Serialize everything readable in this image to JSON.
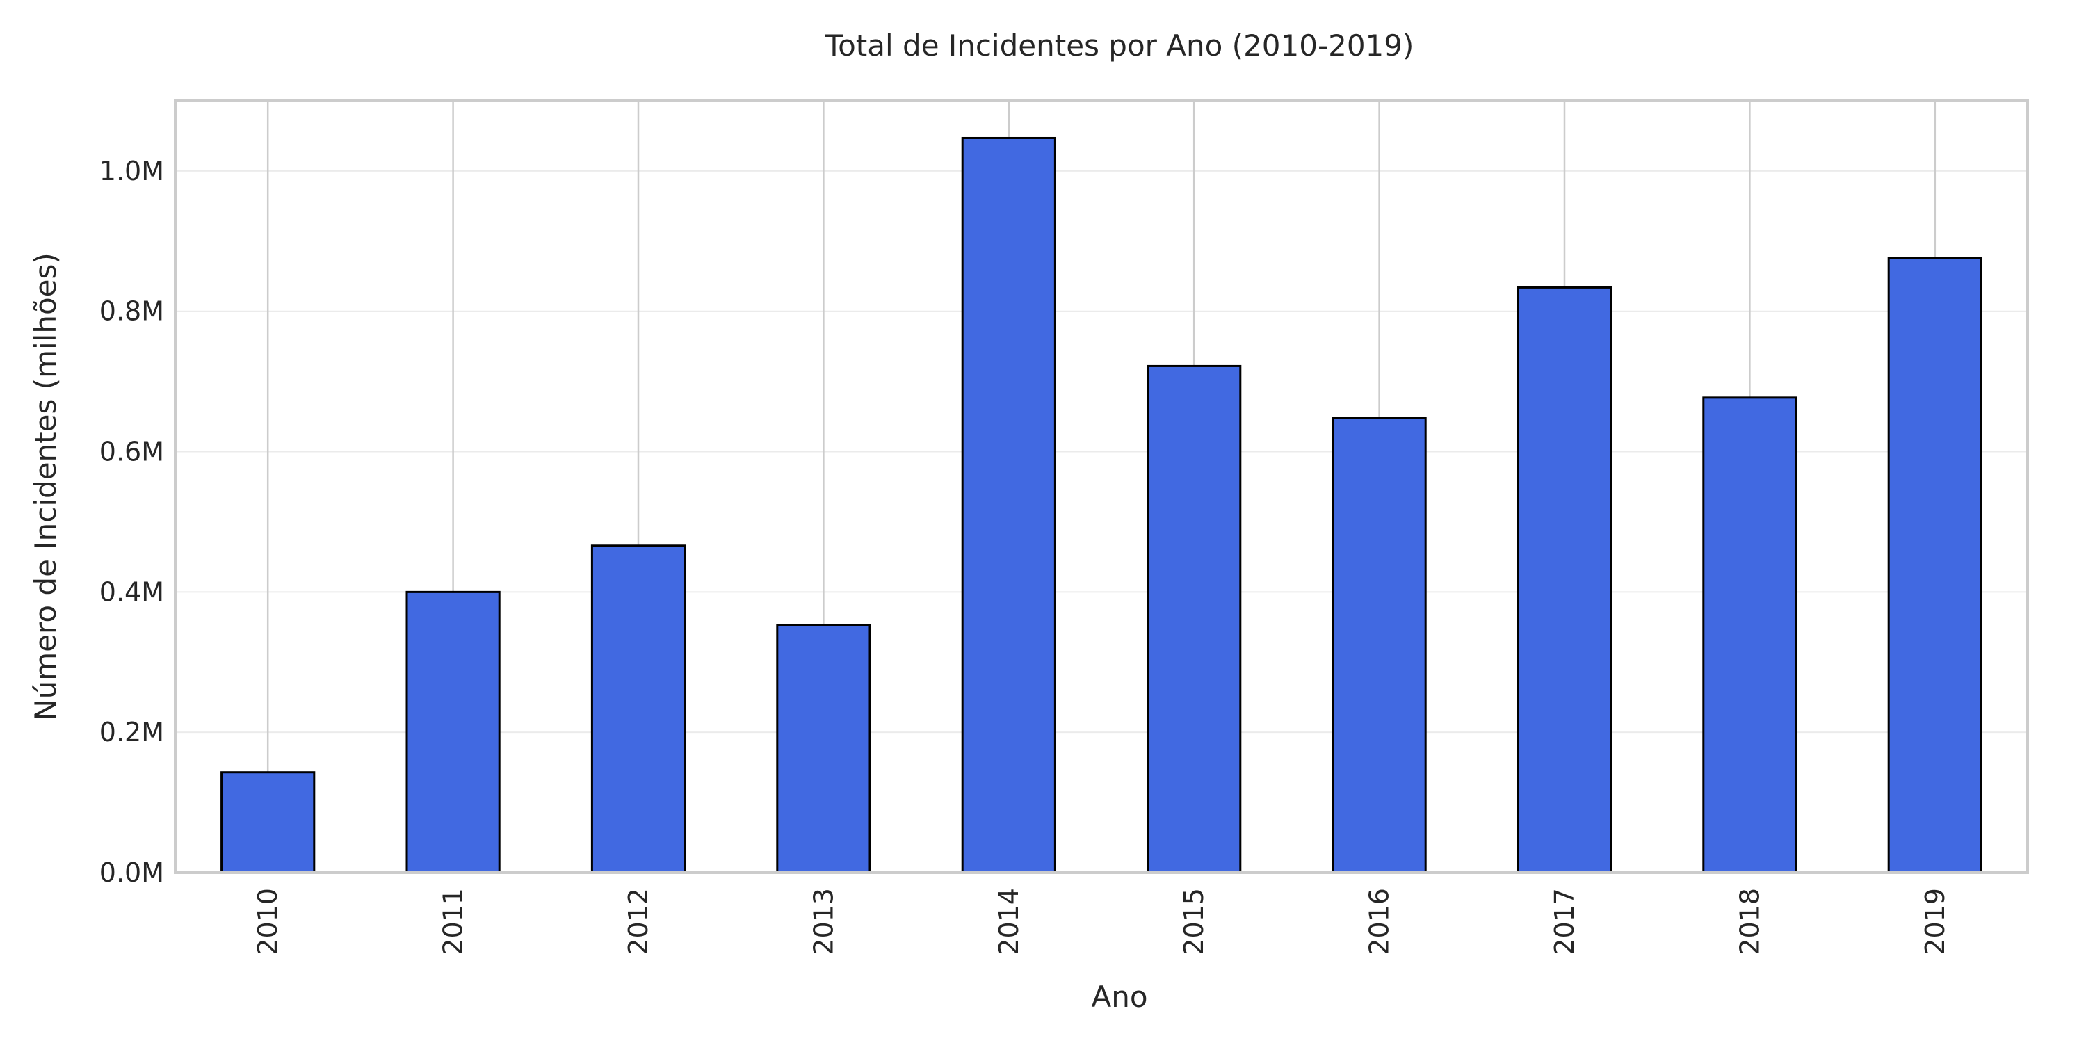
{
  "chart_data": {
    "type": "bar",
    "title": "Total de Incidentes por Ano (2010-2019)",
    "xlabel": "Ano",
    "ylabel": "Número de Incidentes (milhões)",
    "categories": [
      "2010",
      "2011",
      "2012",
      "2013",
      "2014",
      "2015",
      "2016",
      "2017",
      "2018",
      "2019"
    ],
    "values": [
      143000,
      400000,
      466000,
      353000,
      1047000,
      722000,
      648000,
      834000,
      677000,
      876000
    ],
    "ylim": [
      0,
      1100000
    ],
    "yticks": [
      0,
      200000,
      400000,
      600000,
      800000,
      1000000
    ],
    "ytick_labels": [
      "0.0M",
      "0.2M",
      "0.4M",
      "0.6M",
      "0.8M",
      "1.0M"
    ],
    "grid": true,
    "colors": {
      "bar_fill": "#4169e1",
      "bar_edge": "#000000",
      "grid": "#cccccc",
      "hgrid": "#ebebeb",
      "spine": "#cccccc"
    }
  }
}
